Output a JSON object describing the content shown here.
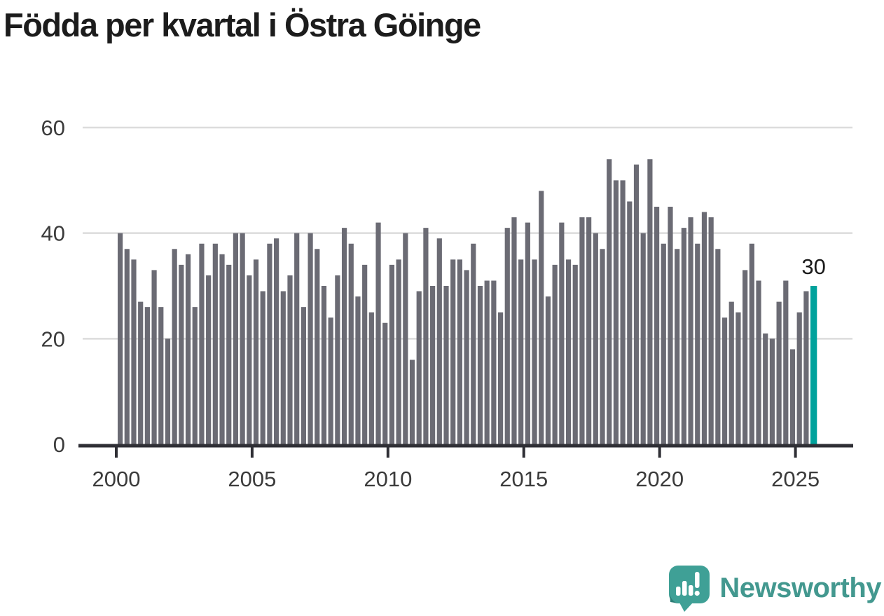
{
  "title": "Födda per kvartal i Östra Göinge",
  "annotation": {
    "last_value_label": "30"
  },
  "logo": {
    "text": "Newsworthy",
    "icon": "newsworthy-speech-bubble-chart-icon"
  },
  "colors": {
    "bar": "#6b6b74",
    "highlight": "#00a29c",
    "gridline": "#dcdcdc",
    "axis": "#2f2f35",
    "tick_label": "#3b3b3b",
    "title": "#1c1c1c",
    "annotation": "#1a1a1a",
    "logo_text": "#43988f",
    "logo_bubble": "#3fa096",
    "logo_bubble_shade": "#2c7d76"
  },
  "chart_data": {
    "type": "bar",
    "title": "Födda per kvartal i Östra Göinge",
    "x_start": {
      "year": 2000,
      "quarter": 1
    },
    "x_end": {
      "year": 2025,
      "quarter": 3
    },
    "values": [
      40,
      37,
      35,
      27,
      26,
      33,
      26,
      20,
      37,
      34,
      36,
      26,
      38,
      32,
      38,
      36,
      34,
      40,
      40,
      32,
      35,
      29,
      38,
      39,
      29,
      32,
      40,
      26,
      40,
      37,
      30,
      24,
      32,
      41,
      38,
      28,
      34,
      25,
      42,
      23,
      34,
      35,
      40,
      16,
      29,
      41,
      30,
      39,
      30,
      35,
      35,
      33,
      38,
      30,
      31,
      31,
      25,
      41,
      43,
      35,
      42,
      35,
      48,
      28,
      34,
      42,
      35,
      34,
      43,
      43,
      40,
      37,
      54,
      50,
      50,
      46,
      53,
      40,
      54,
      45,
      38,
      45,
      37,
      41,
      43,
      38,
      44,
      43,
      37,
      24,
      27,
      25,
      33,
      38,
      31,
      21,
      20,
      27,
      31,
      18,
      25,
      29,
      30
    ],
    "highlight_last": true,
    "last_value_label": "30",
    "ylim": [
      0,
      60
    ],
    "yticks": [
      0,
      20,
      40,
      60
    ],
    "xticks": [
      2000,
      2005,
      2010,
      2015,
      2020,
      2025
    ],
    "grid": "horizontal",
    "legend": "none",
    "xlabel": "",
    "ylabel": ""
  }
}
